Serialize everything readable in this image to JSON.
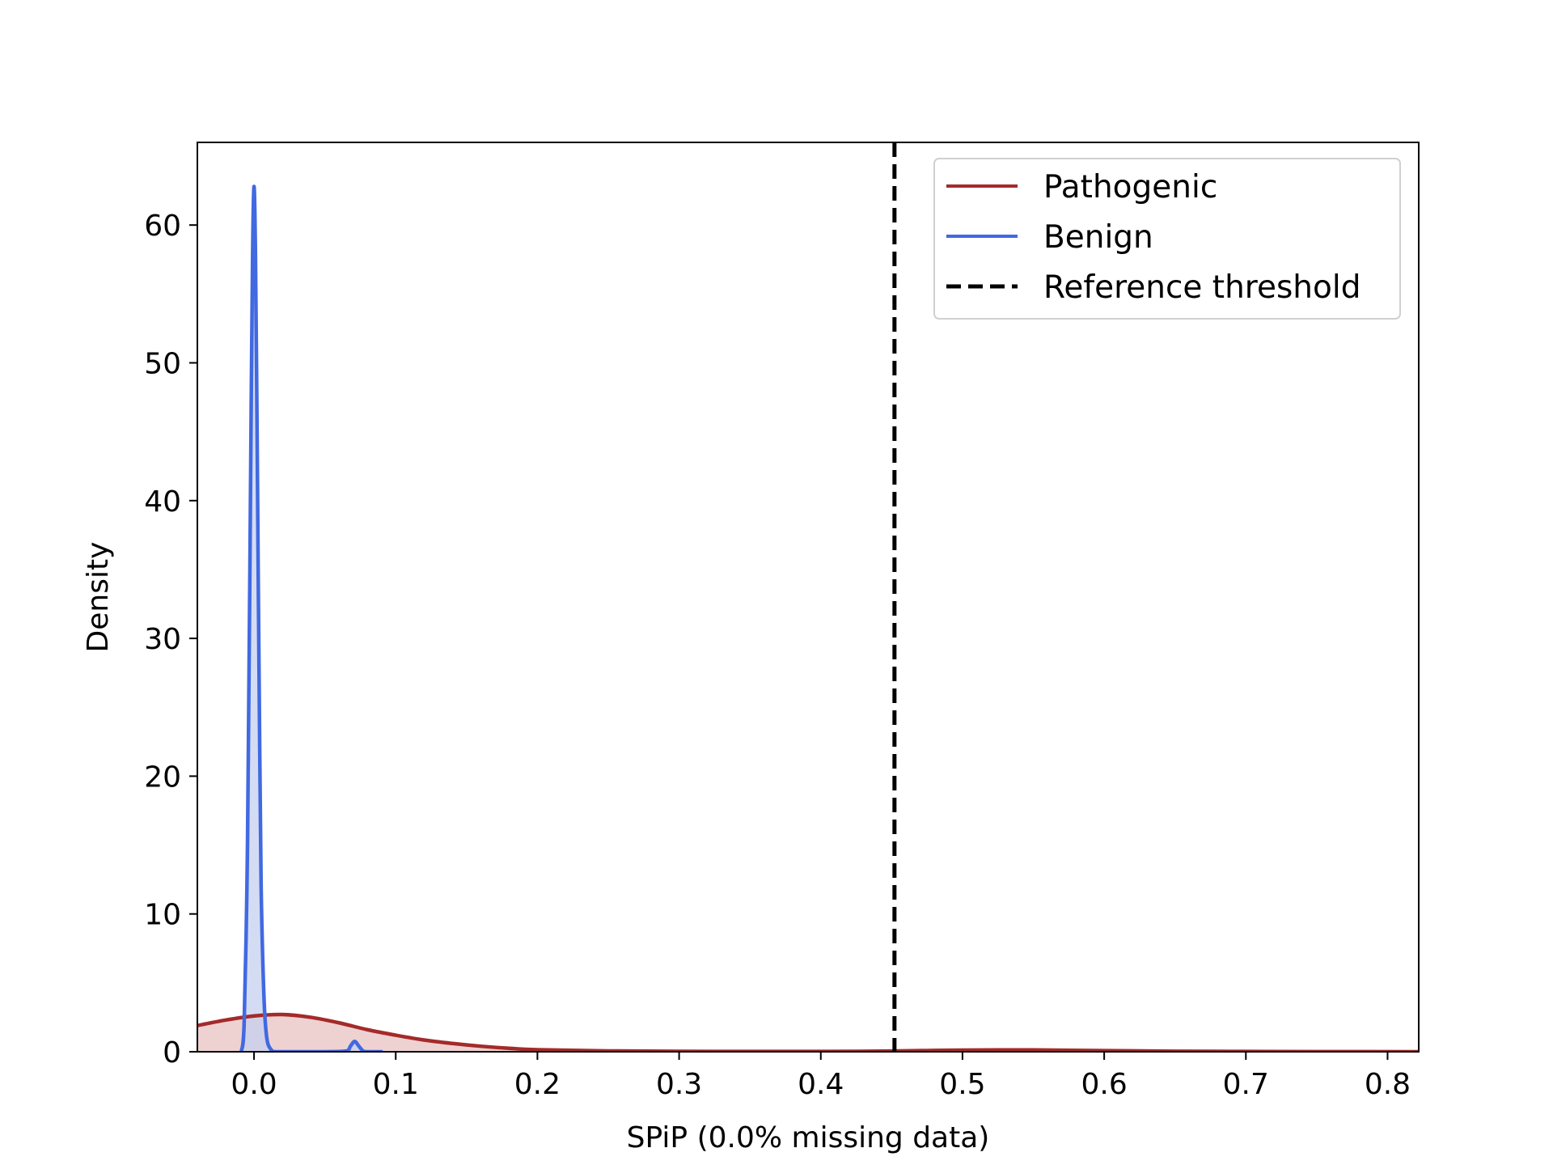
{
  "chart_data": {
    "type": "area",
    "xlabel": "SPiP (0.0% missing data)",
    "ylabel": "Density",
    "xlim": [
      -0.04,
      0.822
    ],
    "ylim": [
      0,
      66
    ],
    "x_ticks": [
      0.0,
      0.1,
      0.2,
      0.3,
      0.4,
      0.5,
      0.6,
      0.7,
      0.8
    ],
    "x_tick_labels": [
      "0.0",
      "0.1",
      "0.2",
      "0.3",
      "0.4",
      "0.5",
      "0.6",
      "0.7",
      "0.8"
    ],
    "y_ticks": [
      0,
      10,
      20,
      30,
      40,
      50,
      60
    ],
    "y_tick_labels": [
      "0",
      "10",
      "20",
      "30",
      "40",
      "50",
      "60"
    ],
    "grid": false,
    "legend_position": "top-right",
    "series": [
      {
        "name": "Pathogenic",
        "color": "#a52a2a",
        "fill": "#e8c3c3",
        "x": [
          -0.04,
          -0.02,
          0.0,
          0.02,
          0.04,
          0.06,
          0.08,
          0.1,
          0.12,
          0.14,
          0.16,
          0.18,
          0.2,
          0.25,
          0.3,
          0.35,
          0.4,
          0.45,
          0.5,
          0.55,
          0.6,
          0.65,
          0.7,
          0.75,
          0.822
        ],
        "y": [
          1.9,
          2.3,
          2.6,
          2.7,
          2.5,
          2.1,
          1.6,
          1.2,
          0.85,
          0.6,
          0.4,
          0.25,
          0.15,
          0.06,
          0.03,
          0.02,
          0.02,
          0.05,
          0.12,
          0.13,
          0.08,
          0.04,
          0.02,
          0.01,
          0.0
        ]
      },
      {
        "name": "Benign",
        "color": "#4169e1",
        "fill": "#c5d0f0",
        "x": [
          -0.009,
          -0.007,
          -0.005,
          -0.004,
          -0.003,
          -0.002,
          -0.001,
          0.0,
          0.001,
          0.002,
          0.003,
          0.004,
          0.005,
          0.007,
          0.009,
          0.012,
          0.015,
          0.02,
          0.03,
          0.05,
          0.065,
          0.068,
          0.071,
          0.074,
          0.077,
          0.08,
          0.09
        ],
        "y": [
          0,
          2.0,
          12.0,
          22.0,
          34.0,
          47.0,
          58.0,
          62.8,
          58.0,
          47.0,
          34.0,
          22.0,
          12.0,
          4.0,
          1.0,
          0.15,
          0.0,
          0.0,
          0.0,
          0.0,
          0.05,
          0.4,
          0.75,
          0.4,
          0.05,
          0.0,
          0.0
        ]
      }
    ],
    "reference_line": {
      "name": "Reference threshold",
      "x": 0.452,
      "color": "#000000",
      "style": "dashed"
    }
  }
}
